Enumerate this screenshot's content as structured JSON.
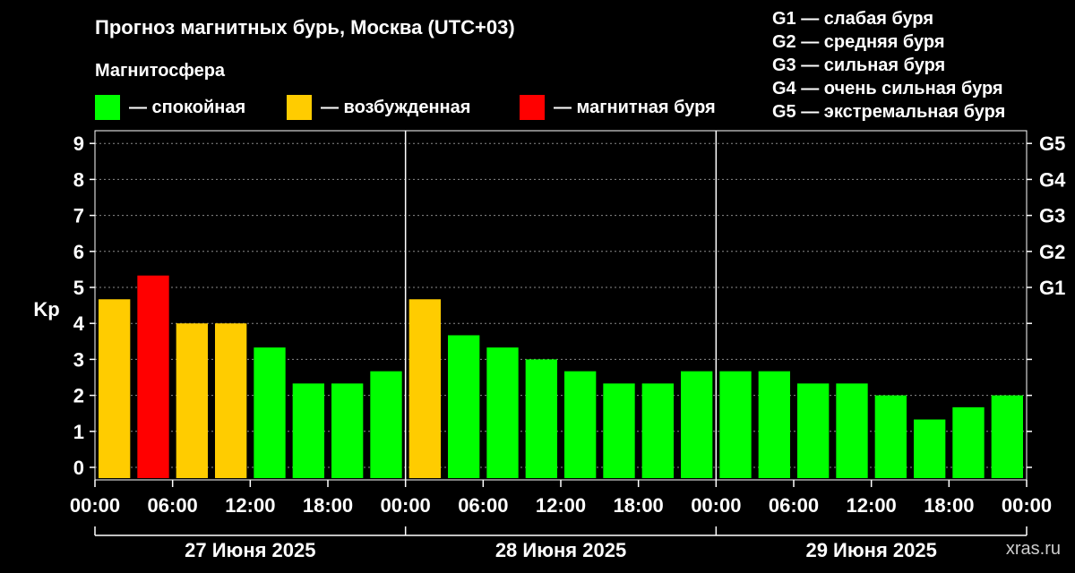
{
  "header": {
    "title": "Прогноз магнитных бурь, Москва (UTC+03)",
    "magnetosphere_label": "Магнитосфера"
  },
  "legend": [
    {
      "color": "#00ff00",
      "label": "— спокойная"
    },
    {
      "color": "#ffcc00",
      "label": "— возбужденная"
    },
    {
      "color": "#ff0000",
      "label": "— магнитная буря"
    }
  ],
  "g_scale": [
    "G1 — слабая буря",
    "G2 — средняя буря",
    "G3 — сильная буря",
    "G4 — очень сильная буря",
    "G5 — экстремальная буря"
  ],
  "watermark": "xras.ru",
  "chart_data": {
    "type": "bar",
    "ylabel": "Kp",
    "ylim": [
      0,
      9
    ],
    "y_ticks": [
      0,
      1,
      2,
      3,
      4,
      5,
      6,
      7,
      8,
      9
    ],
    "right_axis_labels": [
      {
        "kp": 5,
        "label": "G1"
      },
      {
        "kp": 6,
        "label": "G2"
      },
      {
        "kp": 7,
        "label": "G3"
      },
      {
        "kp": 8,
        "label": "G4"
      },
      {
        "kp": 9,
        "label": "G5"
      }
    ],
    "x_tick_labels": [
      "00:00",
      "06:00",
      "12:00",
      "18:00",
      "00:00",
      "06:00",
      "12:00",
      "18:00",
      "00:00",
      "06:00",
      "12:00",
      "18:00",
      "00:00"
    ],
    "days": [
      "27 Июня 2025",
      "28 Июня 2025",
      "29 Июня 2025"
    ],
    "colors": {
      "quiet": "#00ff00",
      "unsettled": "#ffcc00",
      "storm": "#ff0000"
    },
    "values": [
      4.67,
      5.33,
      4.0,
      4.0,
      3.33,
      2.33,
      2.33,
      2.67,
      4.67,
      3.67,
      3.33,
      3.0,
      2.67,
      2.33,
      2.33,
      2.67,
      2.67,
      2.67,
      2.33,
      2.33,
      2.0,
      1.33,
      1.67,
      2.0
    ],
    "states": [
      "unsettled",
      "storm",
      "unsettled",
      "unsettled",
      "quiet",
      "quiet",
      "quiet",
      "quiet",
      "unsettled",
      "quiet",
      "quiet",
      "quiet",
      "quiet",
      "quiet",
      "quiet",
      "quiet",
      "quiet",
      "quiet",
      "quiet",
      "quiet",
      "quiet",
      "quiet",
      "quiet",
      "quiet"
    ],
    "grid": true
  }
}
